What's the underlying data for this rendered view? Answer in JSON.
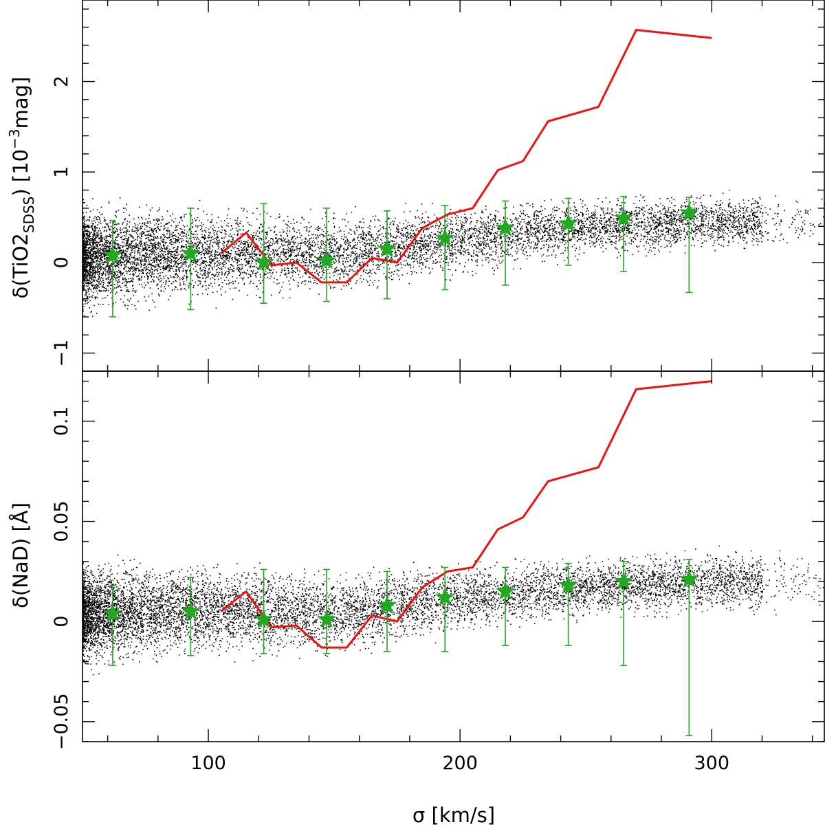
{
  "chart_data": [
    {
      "type": "scatter",
      "panel": "top",
      "ylabel_main": "δ(TiO2",
      "ylabel_sub": "SDSS",
      "ylabel_close": ")  [10",
      "ylabel_sup": "−3",
      "ylabel_unit": "mag]",
      "xlim": [
        50,
        345
      ],
      "ylim": [
        -1.2,
        2.9
      ],
      "y_ticks_labeled": [
        -1,
        0,
        1,
        2
      ],
      "y_tick_labels": [
        "−1",
        "0",
        "1",
        "2"
      ],
      "y_minor_step": 0.2,
      "x_ticks_labeled": [
        100,
        200,
        300
      ],
      "x_minor_step": 20,
      "series": [
        {
          "kind": "points",
          "color": "#000000",
          "trend": [
            [
              50,
              0.05
            ],
            [
              100,
              0.12
            ],
            [
              150,
              0.1
            ],
            [
              200,
              0.25
            ],
            [
              250,
              0.4
            ],
            [
              300,
              0.45
            ],
            [
              345,
              0.45
            ]
          ],
          "spread": [
            [
              50,
              0.45
            ],
            [
              100,
              0.38
            ],
            [
              150,
              0.35
            ],
            [
              200,
              0.3
            ],
            [
              250,
              0.25
            ],
            [
              345,
              0.25
            ]
          ]
        },
        {
          "kind": "line",
          "color": "#ee1111",
          "x": [
            105,
            115,
            125,
            135,
            145,
            155,
            165,
            175,
            185,
            195,
            205,
            215,
            225,
            235,
            255,
            270,
            300
          ],
          "y": [
            0.1,
            0.33,
            -0.03,
            0.0,
            -0.22,
            -0.22,
            0.05,
            0.0,
            0.38,
            0.53,
            0.6,
            1.02,
            1.12,
            1.56,
            1.72,
            2.57,
            2.48
          ]
        },
        {
          "kind": "stars",
          "color": "#1faa1f",
          "x": [
            62,
            93,
            122,
            147,
            171,
            194,
            218,
            243,
            265,
            291
          ],
          "y": [
            0.08,
            0.1,
            0.0,
            0.02,
            0.15,
            0.27,
            0.38,
            0.43,
            0.49,
            0.55
          ],
          "err_low": [
            -0.6,
            -0.52,
            -0.45,
            -0.43,
            -0.4,
            -0.3,
            -0.25,
            -0.03,
            -0.1,
            -0.33
          ],
          "err_high": [
            0.46,
            0.6,
            0.65,
            0.6,
            0.57,
            0.63,
            0.68,
            0.71,
            0.73,
            0.72
          ]
        }
      ]
    },
    {
      "type": "scatter",
      "panel": "bottom",
      "ylabel": "δ(NaD)  [Å]",
      "xlabel": "σ  [km/s]",
      "xlim": [
        50,
        345
      ],
      "ylim": [
        -0.06,
        0.125
      ],
      "y_ticks_labeled": [
        -0.05,
        0,
        0.05,
        0.1
      ],
      "y_tick_labels": [
        "−0.05",
        "0",
        "0.05",
        "0.1"
      ],
      "y_minor_step": 0.01,
      "x_ticks_labeled": [
        100,
        200,
        300
      ],
      "x_tick_labels": [
        "100",
        "200",
        "300"
      ],
      "x_minor_step": 20,
      "series": [
        {
          "kind": "points",
          "color": "#000000",
          "trend": [
            [
              50,
              0.004
            ],
            [
              100,
              0.006
            ],
            [
              150,
              0.004
            ],
            [
              200,
              0.012
            ],
            [
              250,
              0.017
            ],
            [
              300,
              0.02
            ],
            [
              345,
              0.02
            ]
          ],
          "spread": [
            [
              50,
              0.02
            ],
            [
              100,
              0.017
            ],
            [
              150,
              0.016
            ],
            [
              200,
              0.014
            ],
            [
              250,
              0.012
            ],
            [
              345,
              0.012
            ]
          ]
        },
        {
          "kind": "line",
          "color": "#ee1111",
          "x": [
            105,
            115,
            125,
            135,
            145,
            155,
            165,
            175,
            185,
            195,
            205,
            215,
            225,
            235,
            255,
            270,
            300
          ],
          "y": [
            0.005,
            0.015,
            -0.003,
            -0.002,
            -0.013,
            -0.013,
            0.003,
            0.0,
            0.017,
            0.025,
            0.027,
            0.046,
            0.052,
            0.07,
            0.077,
            0.116,
            0.12
          ]
        },
        {
          "kind": "stars",
          "color": "#1faa1f",
          "x": [
            62,
            93,
            122,
            147,
            171,
            194,
            218,
            243,
            265,
            291
          ],
          "y": [
            0.004,
            0.005,
            0.001,
            0.001,
            0.008,
            0.012,
            0.015,
            0.018,
            0.02,
            0.021
          ],
          "err_low": [
            -0.022,
            -0.017,
            -0.016,
            -0.016,
            -0.015,
            -0.015,
            -0.012,
            -0.012,
            -0.022,
            -0.057
          ],
          "err_high": [
            0.018,
            0.022,
            0.026,
            0.026,
            0.025,
            0.027,
            0.027,
            0.029,
            0.03,
            0.031
          ]
        }
      ]
    }
  ]
}
